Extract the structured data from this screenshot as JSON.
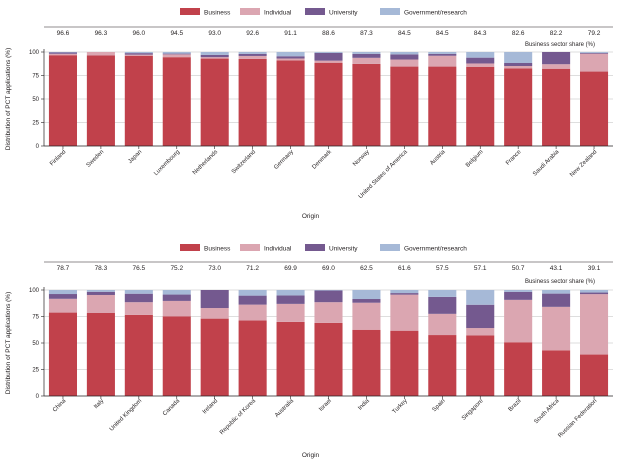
{
  "colors": {
    "Business": "#c1414b",
    "Individual": "#dba6b1",
    "University": "#74598f",
    "Government/research": "#a6b9d7",
    "axis": "#231f20",
    "grid": "#bcbcbc"
  },
  "chart_data": [
    {
      "type": "bar",
      "stacked": true,
      "legend": [
        "Business",
        "Individual",
        "University",
        "Government/research"
      ],
      "legend_position": "top",
      "xlabel": "Origin",
      "ylabel": "Distribution of PCT applications (%)",
      "ylim": [
        0,
        100
      ],
      "yticks": [
        "0",
        "25",
        "50",
        "75",
        "100"
      ],
      "share_label": "Business sector share (%)",
      "categories": [
        "Finland",
        "Sweden",
        "Japan",
        "Luxembourg",
        "Netherlands",
        "Switzerland",
        "Germany",
        "Denmark",
        "Norway",
        "United States of America",
        "Austria",
        "Belgium",
        "France",
        "Saudi Arabia",
        "New Zealand"
      ],
      "share_labels": [
        "96.6",
        "96.3",
        "96.0",
        "94.5",
        "93.0",
        "92.6",
        "91.1",
        "88.6",
        "87.3",
        "84.5",
        "84.5",
        "84.3",
        "82.6",
        "82.2",
        "79.2"
      ],
      "series": [
        {
          "name": "Business",
          "values": [
            96.6,
            96.3,
            96.0,
            94.5,
            93.0,
            92.6,
            91.1,
            88.6,
            87.3,
            84.5,
            84.5,
            84.3,
            82.6,
            82.2,
            79.2
          ]
        },
        {
          "name": "Individual",
          "values": [
            1.5,
            3.7,
            1.2,
            3.0,
            1.5,
            3.2,
            2.0,
            2.2,
            6.5,
            7.5,
            11.5,
            3.5,
            2.5,
            4.8,
            19.0
          ]
        },
        {
          "name": "University",
          "values": [
            1.4,
            0.0,
            1.6,
            0.8,
            2.5,
            2.2,
            2.4,
            8.2,
            4.2,
            5.5,
            2.0,
            6.2,
            3.2,
            13.0,
            0.8
          ]
        },
        {
          "name": "Government/research",
          "values": [
            0.5,
            0.0,
            1.2,
            1.7,
            3.0,
            2.0,
            4.5,
            1.0,
            2.0,
            2.5,
            2.0,
            6.0,
            11.7,
            0.0,
            1.0
          ]
        }
      ]
    },
    {
      "type": "bar",
      "stacked": true,
      "legend": [
        "Business",
        "Individual",
        "University",
        "Government/research"
      ],
      "legend_position": "top",
      "xlabel": "Origin",
      "ylabel": "Distribution of PCT applications (%)",
      "ylim": [
        0,
        100
      ],
      "yticks": [
        "0",
        "25",
        "50",
        "75",
        "100"
      ],
      "share_label": "Business sector share (%)",
      "categories": [
        "China",
        "Italy",
        "United Kingdom",
        "Canada",
        "Ireland",
        "Republic of Korea",
        "Australia",
        "Israel",
        "India",
        "Turkey",
        "Spain",
        "Singapore",
        "Brazil",
        "South Africa",
        "Russian Federation"
      ],
      "share_labels": [
        "78.7",
        "78.3",
        "76.5",
        "75.2",
        "73.0",
        "71.2",
        "69.9",
        "69.0",
        "62.5",
        "61.6",
        "57.5",
        "57.1",
        "50.7",
        "43.1",
        "39.1"
      ],
      "series": [
        {
          "name": "Business",
          "values": [
            78.7,
            78.3,
            76.5,
            75.2,
            73.0,
            71.2,
            69.9,
            69.0,
            62.5,
            61.6,
            57.5,
            57.1,
            50.7,
            43.1,
            39.1
          ]
        },
        {
          "name": "Individual",
          "values": [
            13.0,
            17.0,
            12.0,
            14.5,
            10.0,
            15.0,
            17.0,
            19.5,
            25.5,
            34.0,
            20.0,
            7.0,
            40.0,
            41.0,
            57.0
          ]
        },
        {
          "name": "University",
          "values": [
            4.5,
            3.0,
            8.0,
            6.0,
            17.0,
            8.5,
            8.0,
            11.0,
            3.5,
            1.5,
            16.0,
            22.0,
            7.5,
            12.5,
            1.5
          ]
        },
        {
          "name": "Government/research",
          "values": [
            3.8,
            1.7,
            3.5,
            4.3,
            0.0,
            5.3,
            5.1,
            0.5,
            8.5,
            2.9,
            6.5,
            13.9,
            1.8,
            3.4,
            2.4
          ]
        }
      ]
    }
  ]
}
